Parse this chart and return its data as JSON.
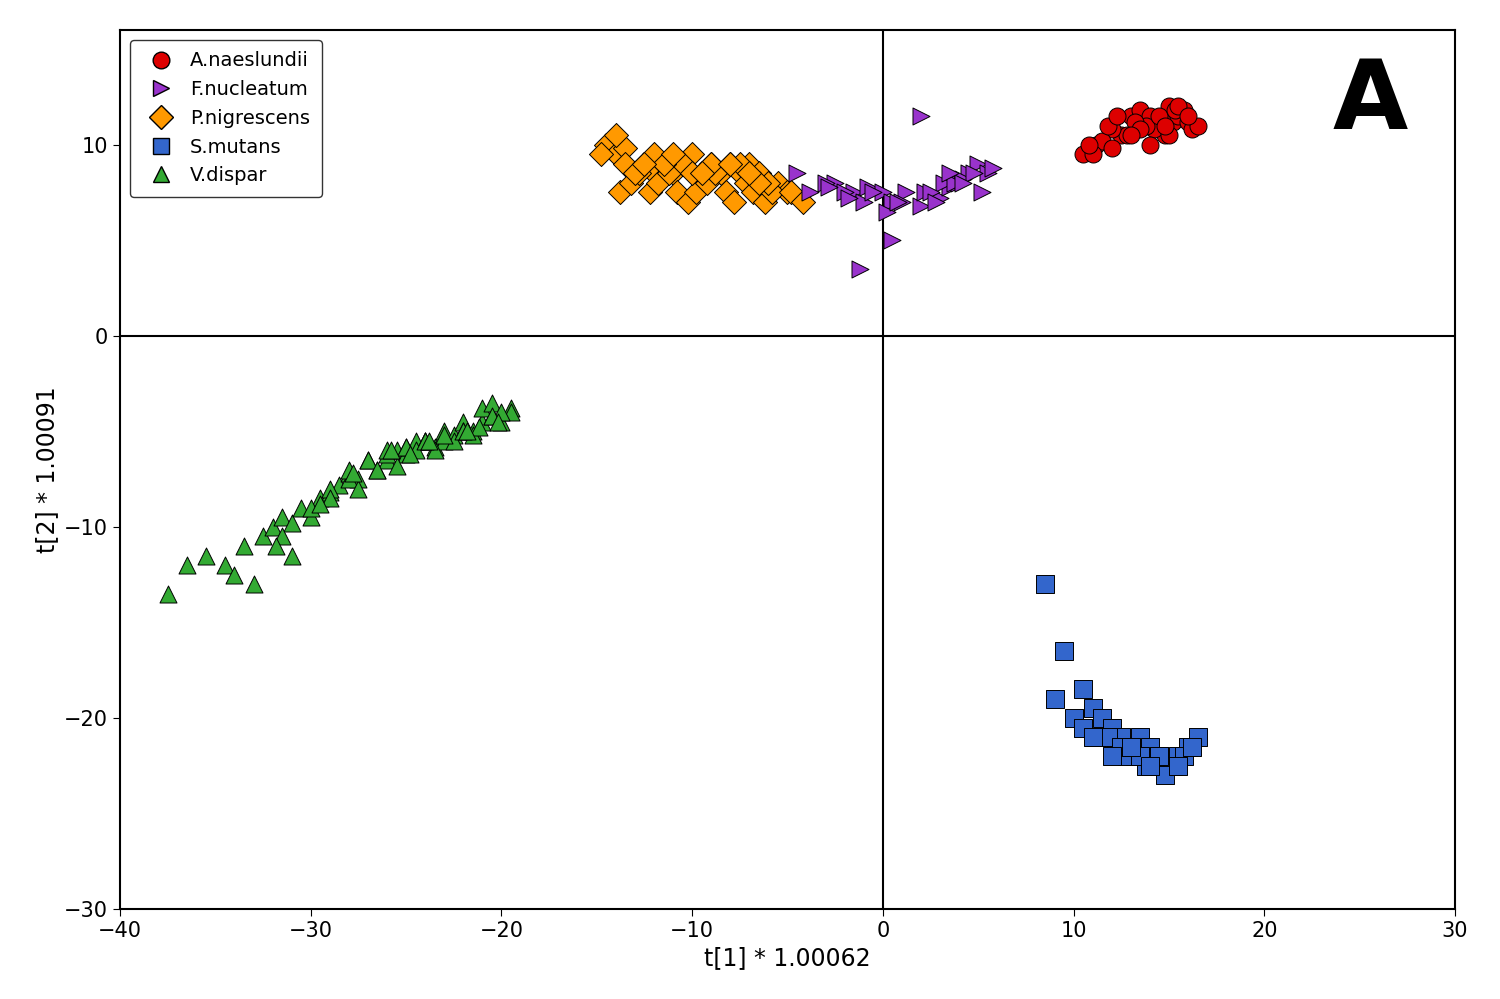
{
  "xlabel": "t[1] * 1.00062",
  "ylabel": "t[2] * 1.00091",
  "xlim": [
    -40,
    30
  ],
  "ylim": [
    -30,
    16
  ],
  "xticks": [
    -40,
    -30,
    -20,
    -10,
    0,
    10,
    20,
    30
  ],
  "yticks": [
    -30,
    -20,
    -10,
    0,
    10
  ],
  "label_A": "A",
  "legend_entries": [
    "A.naeslundii",
    "F.nucleatum",
    "P.nigrescens",
    "S.mutans",
    "V.dispar"
  ],
  "colors": {
    "A.naeslundii": "#dd0000",
    "F.nucleatum": "#9933cc",
    "P.nigrescens": "#ff9900",
    "S.mutans": "#3366cc",
    "V.dispar": "#33aa33"
  },
  "A_naeslundii_x": [
    10.5,
    11.2,
    12.5,
    13.0,
    13.5,
    14.0,
    14.5,
    15.0,
    15.2,
    15.5,
    15.8,
    16.0,
    16.2,
    16.5,
    14.8,
    14.2,
    13.8,
    13.2,
    12.8,
    12.0,
    11.5,
    11.8,
    12.3,
    13.5,
    14.5,
    15.3,
    15.0,
    14.0,
    13.0,
    12.0,
    11.0,
    10.8,
    14.8,
    15.5,
    16.0
  ],
  "A_naeslundii_y": [
    9.5,
    10.0,
    10.5,
    11.5,
    11.8,
    11.5,
    11.0,
    12.0,
    11.2,
    11.5,
    11.8,
    11.2,
    10.8,
    11.0,
    10.5,
    10.8,
    11.0,
    11.2,
    10.5,
    10.8,
    10.2,
    11.0,
    11.5,
    10.8,
    11.5,
    11.8,
    10.5,
    10.0,
    10.5,
    9.8,
    9.5,
    10.0,
    11.0,
    12.0,
    11.5
  ],
  "F_nucleatum_x": [
    -4.5,
    -3.8,
    -2.5,
    -1.5,
    -0.8,
    0.0,
    0.5,
    1.2,
    2.0,
    3.0,
    3.5,
    4.0,
    4.5,
    5.0,
    5.5,
    -3.0,
    -2.0,
    -1.0,
    0.2,
    1.0,
    2.2,
    3.2,
    4.2,
    5.2,
    -2.8,
    -1.8,
    -0.5,
    0.8,
    2.5,
    3.8,
    4.8,
    5.8,
    -1.2,
    0.5,
    2.8,
    4.2,
    3.5,
    2.0
  ],
  "F_nucleatum_y": [
    8.5,
    7.5,
    8.0,
    7.5,
    7.8,
    7.5,
    7.0,
    7.5,
    6.8,
    7.2,
    7.8,
    8.0,
    8.5,
    9.0,
    8.5,
    8.0,
    7.5,
    7.0,
    6.5,
    7.0,
    7.5,
    8.0,
    8.2,
    7.5,
    7.8,
    7.2,
    7.5,
    7.0,
    7.5,
    8.0,
    8.5,
    8.8,
    3.5,
    5.0,
    7.0,
    8.0,
    8.5,
    11.5
  ],
  "P_nigrescens_x": [
    -14.5,
    -14.0,
    -13.5,
    -13.0,
    -12.5,
    -12.0,
    -11.5,
    -11.0,
    -10.5,
    -10.0,
    -9.5,
    -9.0,
    -8.5,
    -8.0,
    -7.5,
    -7.0,
    -6.5,
    -6.0,
    -5.5,
    -5.0,
    -13.8,
    -13.2,
    -12.8,
    -12.2,
    -11.8,
    -11.2,
    -10.8,
    -10.2,
    -9.8,
    -9.2,
    -8.8,
    -8.2,
    -7.8,
    -7.2,
    -6.8,
    -6.2,
    -5.8,
    -14.8,
    -13.5,
    -12.0,
    -10.5,
    -9.0,
    -7.5,
    -6.0,
    -4.8,
    -4.2,
    -11.5,
    -10.0,
    -8.0,
    -6.5,
    -13.0,
    -11.0,
    -9.5,
    -7.0,
    -14.0,
    -12.5
  ],
  "P_nigrescens_y": [
    10.0,
    9.5,
    9.8,
    8.5,
    9.0,
    8.5,
    9.0,
    8.5,
    9.0,
    9.5,
    8.5,
    9.0,
    8.5,
    9.0,
    8.5,
    9.0,
    8.5,
    7.5,
    8.0,
    7.5,
    7.5,
    8.0,
    8.5,
    7.5,
    8.0,
    8.5,
    7.5,
    7.0,
    7.5,
    8.0,
    8.5,
    7.5,
    7.0,
    8.0,
    7.5,
    7.0,
    7.5,
    9.5,
    9.0,
    9.5,
    9.0,
    9.0,
    9.0,
    8.0,
    7.5,
    7.0,
    9.0,
    8.5,
    9.0,
    8.0,
    8.5,
    9.5,
    8.5,
    8.5,
    10.5,
    9.0
  ],
  "S_mutans_x": [
    8.5,
    9.5,
    9.0,
    10.5,
    11.0,
    11.5,
    12.0,
    12.5,
    13.0,
    13.5,
    14.0,
    14.5,
    15.0,
    15.5,
    16.0,
    16.5,
    10.0,
    11.2,
    12.2,
    13.2,
    14.2,
    15.2,
    11.8,
    12.8,
    13.8,
    14.8,
    15.8,
    10.5,
    12.5,
    14.5,
    16.2,
    11.0,
    13.5,
    15.5,
    12.0,
    14.0,
    13.0
  ],
  "S_mutans_y": [
    -13.0,
    -16.5,
    -19.0,
    -18.5,
    -19.5,
    -20.0,
    -20.5,
    -21.0,
    -21.5,
    -21.0,
    -21.5,
    -22.0,
    -22.5,
    -22.0,
    -21.5,
    -21.0,
    -20.0,
    -21.0,
    -21.5,
    -22.0,
    -22.5,
    -22.5,
    -21.0,
    -22.0,
    -22.5,
    -23.0,
    -22.0,
    -20.5,
    -21.5,
    -22.0,
    -21.5,
    -21.0,
    -22.0,
    -22.5,
    -22.0,
    -22.5,
    -21.5
  ],
  "V_dispar_x": [
    -37.5,
    -36.5,
    -35.5,
    -34.5,
    -33.5,
    -32.5,
    -32.0,
    -31.5,
    -31.0,
    -30.5,
    -30.0,
    -29.5,
    -29.0,
    -28.5,
    -28.0,
    -27.5,
    -27.0,
    -26.5,
    -26.0,
    -25.5,
    -25.0,
    -24.5,
    -24.0,
    -23.5,
    -23.0,
    -22.5,
    -22.0,
    -21.5,
    -21.0,
    -20.5,
    -20.0,
    -19.5,
    -33.0,
    -31.0,
    -29.0,
    -27.0,
    -25.0,
    -23.0,
    -21.0,
    -19.5,
    -28.0,
    -26.0,
    -24.0,
    -22.0,
    -20.5,
    -27.5,
    -25.5,
    -23.5,
    -21.5,
    -20.0,
    -22.5,
    -24.5,
    -26.5,
    -29.0,
    -31.5,
    -34.0,
    -30.0,
    -28.0,
    -26.0,
    -24.0,
    -22.0,
    -20.5,
    -25.0,
    -23.0,
    -21.2,
    -29.5,
    -27.8,
    -25.8,
    -23.8,
    -21.8,
    -20.2,
    -31.8,
    -24.8
  ],
  "V_dispar_y": [
    -13.5,
    -12.0,
    -11.5,
    -12.0,
    -11.0,
    -10.5,
    -10.0,
    -9.5,
    -9.8,
    -9.0,
    -9.5,
    -8.5,
    -8.2,
    -7.8,
    -7.2,
    -7.5,
    -6.5,
    -7.0,
    -6.5,
    -6.0,
    -6.2,
    -5.5,
    -5.5,
    -5.8,
    -5.0,
    -5.2,
    -4.5,
    -5.0,
    -4.5,
    -4.2,
    -4.5,
    -3.8,
    -13.0,
    -11.5,
    -8.0,
    -6.5,
    -5.8,
    -5.5,
    -3.8,
    -4.0,
    -7.5,
    -6.2,
    -5.5,
    -5.0,
    -3.5,
    -8.0,
    -6.8,
    -6.0,
    -5.2,
    -4.0,
    -5.5,
    -6.0,
    -7.0,
    -8.5,
    -10.5,
    -12.5,
    -9.0,
    -7.0,
    -6.0,
    -5.5,
    -5.0,
    -4.2,
    -5.8,
    -5.2,
    -4.8,
    -8.8,
    -7.2,
    -6.0,
    -5.5,
    -5.0,
    -4.5,
    -11.0,
    -6.2
  ]
}
